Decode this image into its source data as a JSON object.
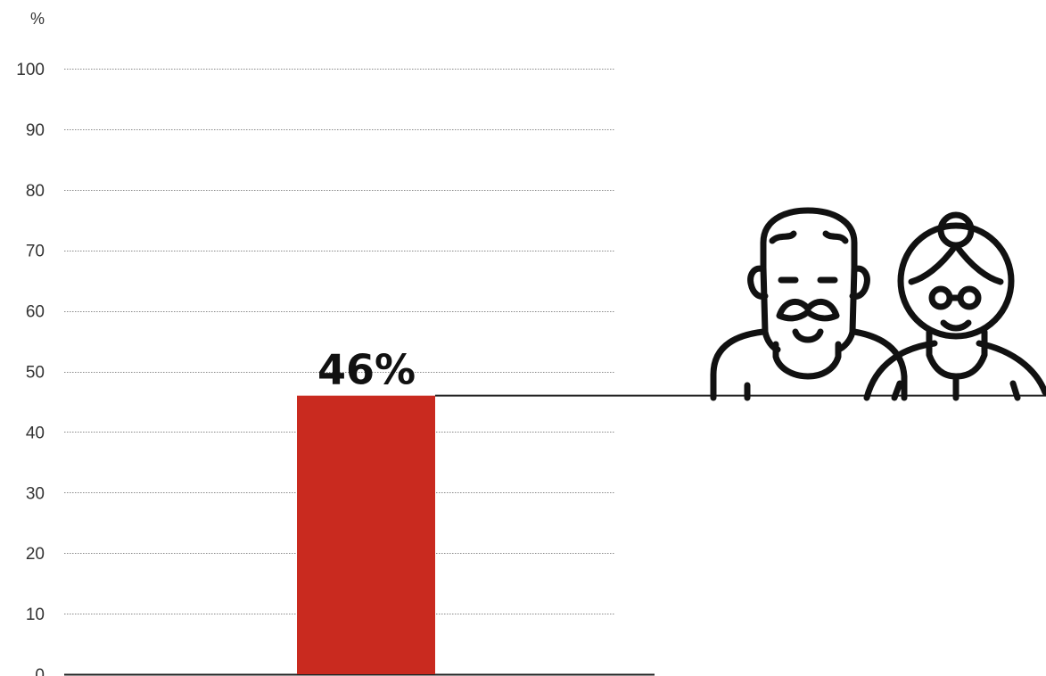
{
  "chart_data": {
    "type": "bar",
    "title": "",
    "xlabel": "",
    "ylabel": "",
    "y_unit": "%",
    "ylim": [
      0,
      100
    ],
    "yticks": [
      0,
      10,
      20,
      30,
      40,
      50,
      60,
      70,
      80,
      90,
      100
    ],
    "categories": [
      ""
    ],
    "values": [
      46
    ],
    "data_labels": [
      "46%"
    ],
    "grid": true,
    "grid_style": "dotted",
    "colors": {
      "bar": "#c92a1f",
      "text": "#111111",
      "axis": "#333333",
      "grid": "#8a8a8a",
      "icon": "#111111"
    },
    "icon": "elderly-couple-icon"
  }
}
